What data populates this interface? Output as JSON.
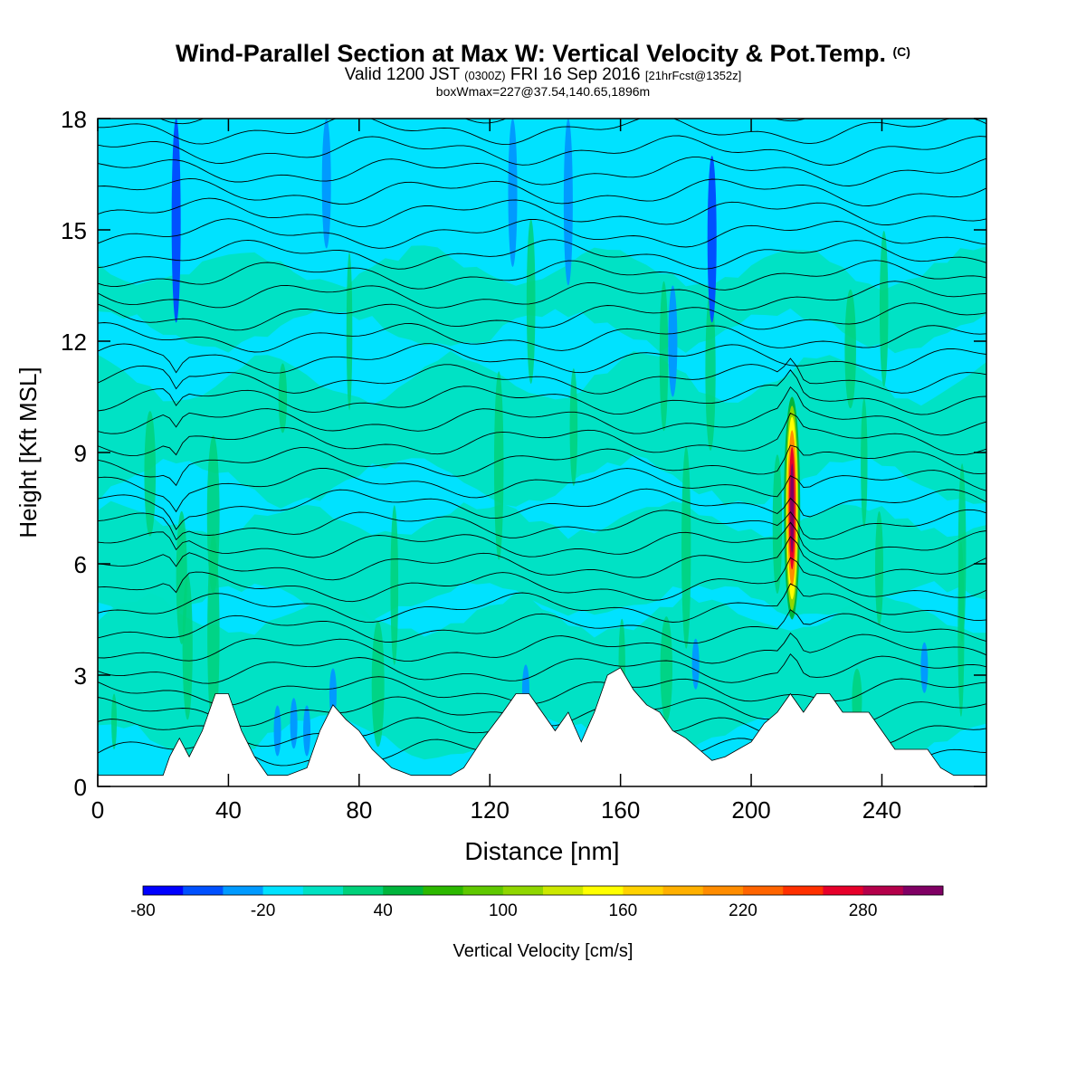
{
  "header": {
    "title": "Wind-Parallel Section at Max W: Vertical Velocity & Pot.Temp.",
    "title_tag": "(C)",
    "valid_prefix": "Valid 1200 JST",
    "valid_utc": "(0300Z)",
    "valid_date": "FRI 16 Sep 2016",
    "valid_fcst": "[21hrFcst@1352z]",
    "box_info": "boxWmax=227@37.54,140.65,1896m"
  },
  "chart_data": {
    "type": "heatmap",
    "xlabel": "Distance [nm]",
    "ylabel": "Height [Kft MSL]",
    "xlim": [
      0,
      272
    ],
    "ylim": [
      0,
      18
    ],
    "xticks": [
      "0",
      "40",
      "80",
      "120",
      "160",
      "200",
      "240"
    ],
    "xtick_values": [
      0,
      40,
      80,
      120,
      160,
      200,
      240
    ],
    "yticks": [
      "0",
      "3",
      "6",
      "9",
      "12",
      "15",
      "18"
    ],
    "ytick_values": [
      0,
      3,
      6,
      9,
      12,
      15,
      18
    ],
    "background_band": {
      "name": "Vertical Velocity",
      "value_range": [
        -20,
        0
      ]
    },
    "terrain_kft": {
      "x": [
        0,
        10,
        20,
        22,
        25,
        28,
        32,
        36,
        40,
        44,
        48,
        52,
        58,
        64,
        68,
        72,
        76,
        80,
        84,
        90,
        96,
        100,
        108,
        112,
        118,
        124,
        128,
        132,
        136,
        140,
        144,
        148,
        152,
        156,
        160,
        164,
        168,
        172,
        176,
        180,
        184,
        188,
        192,
        196,
        200,
        204,
        208,
        212,
        216,
        220,
        224,
        228,
        232,
        236,
        240,
        244,
        248,
        254,
        258,
        262,
        266,
        272
      ],
      "y": [
        0.3,
        0.3,
        0.3,
        0.8,
        1.3,
        0.8,
        1.5,
        2.5,
        2.5,
        1.5,
        0.8,
        0.3,
        0.3,
        0.5,
        1.5,
        2.2,
        1.8,
        1.5,
        1.0,
        0.5,
        0.3,
        0.3,
        0.3,
        0.5,
        1.3,
        2.0,
        2.5,
        2.5,
        2.0,
        1.5,
        2.0,
        1.2,
        2.0,
        3.0,
        3.2,
        2.6,
        2.2,
        2.0,
        1.5,
        1.3,
        1.0,
        0.7,
        0.8,
        1.0,
        1.2,
        1.7,
        2.0,
        2.5,
        2.0,
        2.5,
        2.5,
        2.0,
        2.0,
        2.0,
        1.5,
        1.0,
        1.0,
        1.0,
        0.5,
        0.3,
        0.3,
        0.3
      ]
    },
    "updraft_core": {
      "x": 212.5,
      "y_range_kft": [
        4.5,
        10.5
      ],
      "max_value_cm_s": 227
    },
    "downdraft_streaks": [
      {
        "x": 24,
        "y_range_kft": [
          12.5,
          18.0
        ],
        "value": -60
      },
      {
        "x": 70,
        "y_range_kft": [
          14.5,
          18.0
        ],
        "value": -40
      },
      {
        "x": 127,
        "y_range_kft": [
          14.0,
          18.0
        ],
        "value": -40
      },
      {
        "x": 144,
        "y_range_kft": [
          13.5,
          18.0
        ],
        "value": -40
      },
      {
        "x": 188,
        "y_range_kft": [
          12.5,
          17.0
        ],
        "value": -60
      },
      {
        "x": 176,
        "y_range_kft": [
          10.5,
          13.5
        ],
        "value": -40
      }
    ],
    "theta_isentropes": {
      "count": 32,
      "contour_color": "#000000"
    }
  },
  "colorbar": {
    "title": "Vertical Velocity [cm/s]",
    "min": -80,
    "max": 320,
    "step": 20,
    "tick_labels": [
      "-80",
      "-20",
      "40",
      "100",
      "160",
      "220",
      "280"
    ],
    "tick_values": [
      -80,
      -20,
      40,
      100,
      160,
      220,
      280
    ],
    "colors": [
      "#0000ff",
      "#0050ff",
      "#009aff",
      "#00e2ff",
      "#00e2c2",
      "#00d17a",
      "#00b53c",
      "#2cb800",
      "#5fc800",
      "#8fd600",
      "#cce800",
      "#ffff00",
      "#ffd200",
      "#ffb000",
      "#ff8c00",
      "#ff6400",
      "#ff3000",
      "#e6002a",
      "#b4004a",
      "#800064"
    ]
  }
}
